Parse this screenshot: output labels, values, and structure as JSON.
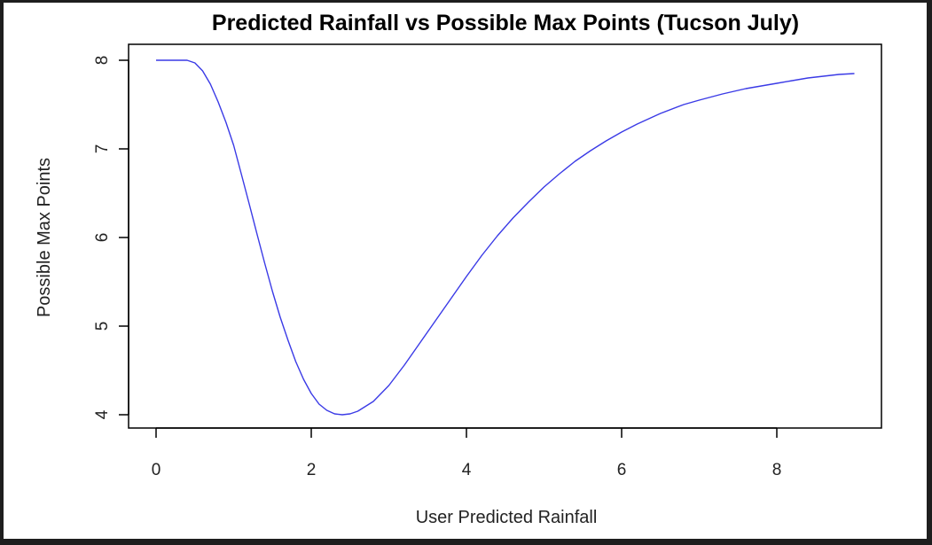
{
  "chart_data": {
    "type": "line",
    "title": "Predicted Rainfall vs Possible Max Points (Tucson July)",
    "xlabel": "User Predicted Rainfall",
    "ylabel": "Possible Max Points",
    "xlim": [
      0,
      9
    ],
    "ylim": [
      4,
      8
    ],
    "x_ticks": [
      "0",
      "2",
      "4",
      "6",
      "8"
    ],
    "y_ticks": [
      "4",
      "5",
      "6",
      "7",
      "8"
    ],
    "grid": false,
    "legend": "none",
    "series": [
      {
        "color": "#3a3ae6",
        "x": [
          0,
          0.2,
          0.4,
          0.5,
          0.6,
          0.7,
          0.8,
          0.9,
          1.0,
          1.1,
          1.2,
          1.3,
          1.4,
          1.5,
          1.6,
          1.7,
          1.8,
          1.9,
          2.0,
          2.1,
          2.2,
          2.3,
          2.4,
          2.5,
          2.6,
          2.8,
          3.0,
          3.2,
          3.4,
          3.6,
          3.8,
          4.0,
          4.2,
          4.4,
          4.6,
          4.8,
          5.0,
          5.2,
          5.4,
          5.6,
          5.8,
          6.0,
          6.2,
          6.5,
          6.8,
          7.0,
          7.3,
          7.6,
          8.0,
          8.4,
          8.8,
          9.0
        ],
        "y": [
          8.0,
          8.0,
          8.0,
          7.97,
          7.88,
          7.73,
          7.53,
          7.3,
          7.04,
          6.71,
          6.38,
          6.04,
          5.71,
          5.39,
          5.1,
          4.84,
          4.6,
          4.4,
          4.24,
          4.12,
          4.05,
          4.01,
          4.0,
          4.01,
          4.04,
          4.15,
          4.33,
          4.56,
          4.81,
          5.06,
          5.31,
          5.56,
          5.8,
          6.02,
          6.22,
          6.4,
          6.57,
          6.72,
          6.86,
          6.98,
          7.09,
          7.19,
          7.28,
          7.4,
          7.5,
          7.55,
          7.62,
          7.68,
          7.74,
          7.8,
          7.84,
          7.85
        ]
      }
    ]
  }
}
